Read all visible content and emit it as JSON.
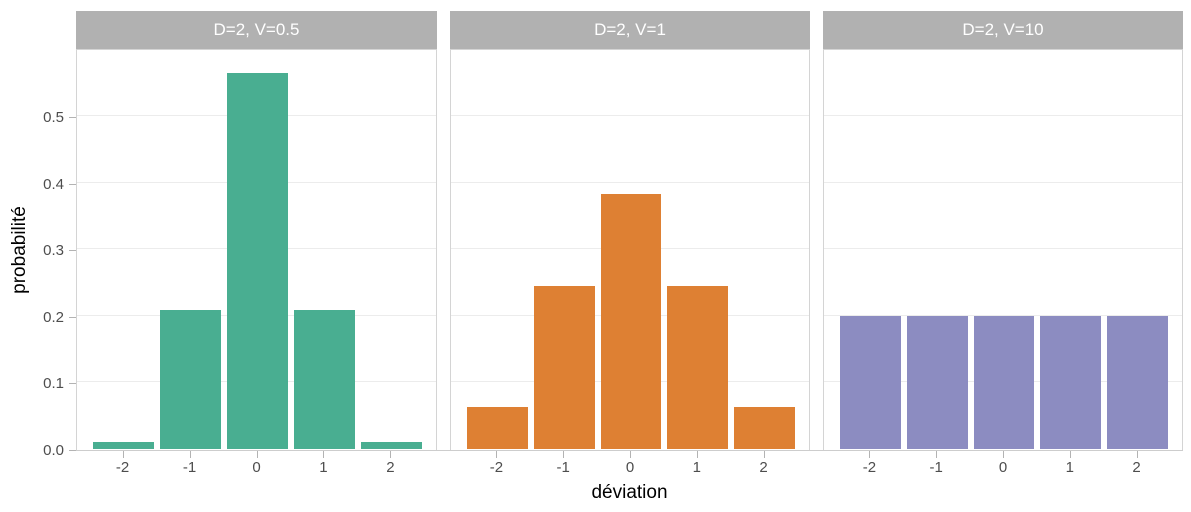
{
  "chart_data": {
    "type": "bar",
    "title": "",
    "xlabel": "déviation",
    "ylabel": "probabilité",
    "categories": [
      "-2",
      "-1",
      "0",
      "1",
      "2"
    ],
    "y_tick_labels": [
      "0.0",
      "0.1",
      "0.2",
      "0.3",
      "0.4",
      "0.5"
    ],
    "y_tick_values": [
      0.0,
      0.1,
      0.2,
      0.3,
      0.4,
      0.5
    ],
    "ylim": [
      0,
      0.6
    ],
    "grid": "horizontal-major",
    "legend": "none",
    "facets": [
      {
        "strip_label": "D=2, V=0.5",
        "bar_color": "#49AE91",
        "values": [
          0.01,
          0.208,
          0.564,
          0.208,
          0.01
        ]
      },
      {
        "strip_label": "D=2, V=1",
        "bar_color": "#DE8033",
        "values": [
          0.063,
          0.245,
          0.383,
          0.245,
          0.063
        ]
      },
      {
        "strip_label": "D=2, V=10",
        "bar_color": "#8C8CC1",
        "values": [
          0.2,
          0.2,
          0.2,
          0.2,
          0.2
        ]
      }
    ]
  },
  "colors": {
    "background": "#FFFFFF",
    "strip_background": "#B1B1B1",
    "strip_text": "#FFFFFF",
    "panel_border": "#D4D4D4",
    "gridline": "#ECECEC",
    "tick": "#B3B3B3",
    "tick_label": "#4D4D4D",
    "axis_title": "#000000"
  }
}
